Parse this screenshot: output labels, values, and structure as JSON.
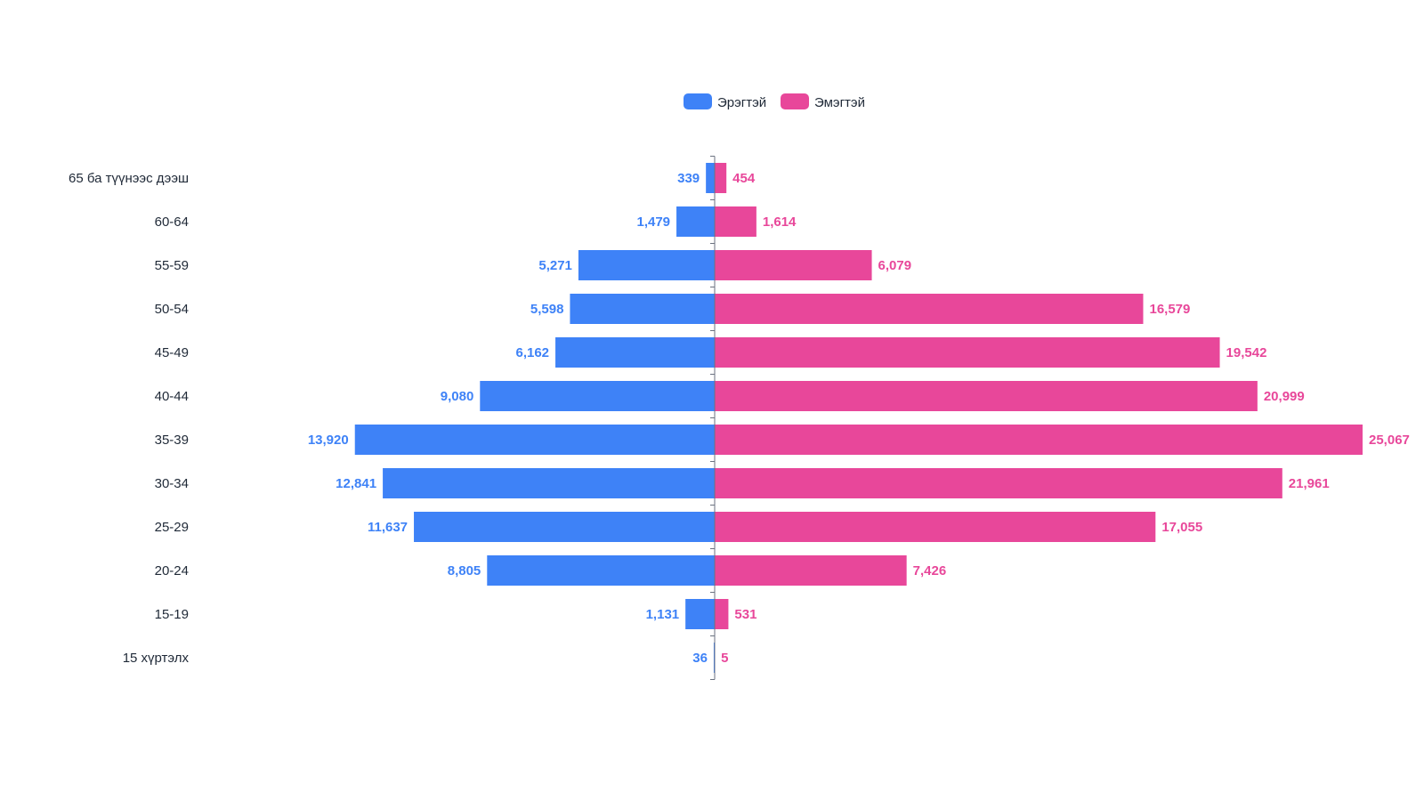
{
  "chart_data": {
    "type": "bar",
    "orientation": "horizontal-diverging",
    "categories": [
      "65 ба түүнээс дээш",
      "60-64",
      "55-59",
      "50-54",
      "45-49",
      "40-44",
      "35-39",
      "30-34",
      "25-29",
      "20-24",
      "15-19",
      "15 хүртэлх"
    ],
    "series": [
      {
        "name": "Эрэгтэй",
        "color": "#3e82f7",
        "values": [
          339,
          1479,
          5271,
          5598,
          6162,
          9080,
          13920,
          12841,
          11637,
          8805,
          1131,
          36
        ]
      },
      {
        "name": "Эмэгтэй",
        "color": "#e8479a",
        "values": [
          454,
          1614,
          6079,
          16579,
          19542,
          20999,
          25067,
          21961,
          17055,
          7426,
          531,
          5
        ]
      }
    ],
    "legend_position": "top-center",
    "number_format": "thousands-comma"
  }
}
